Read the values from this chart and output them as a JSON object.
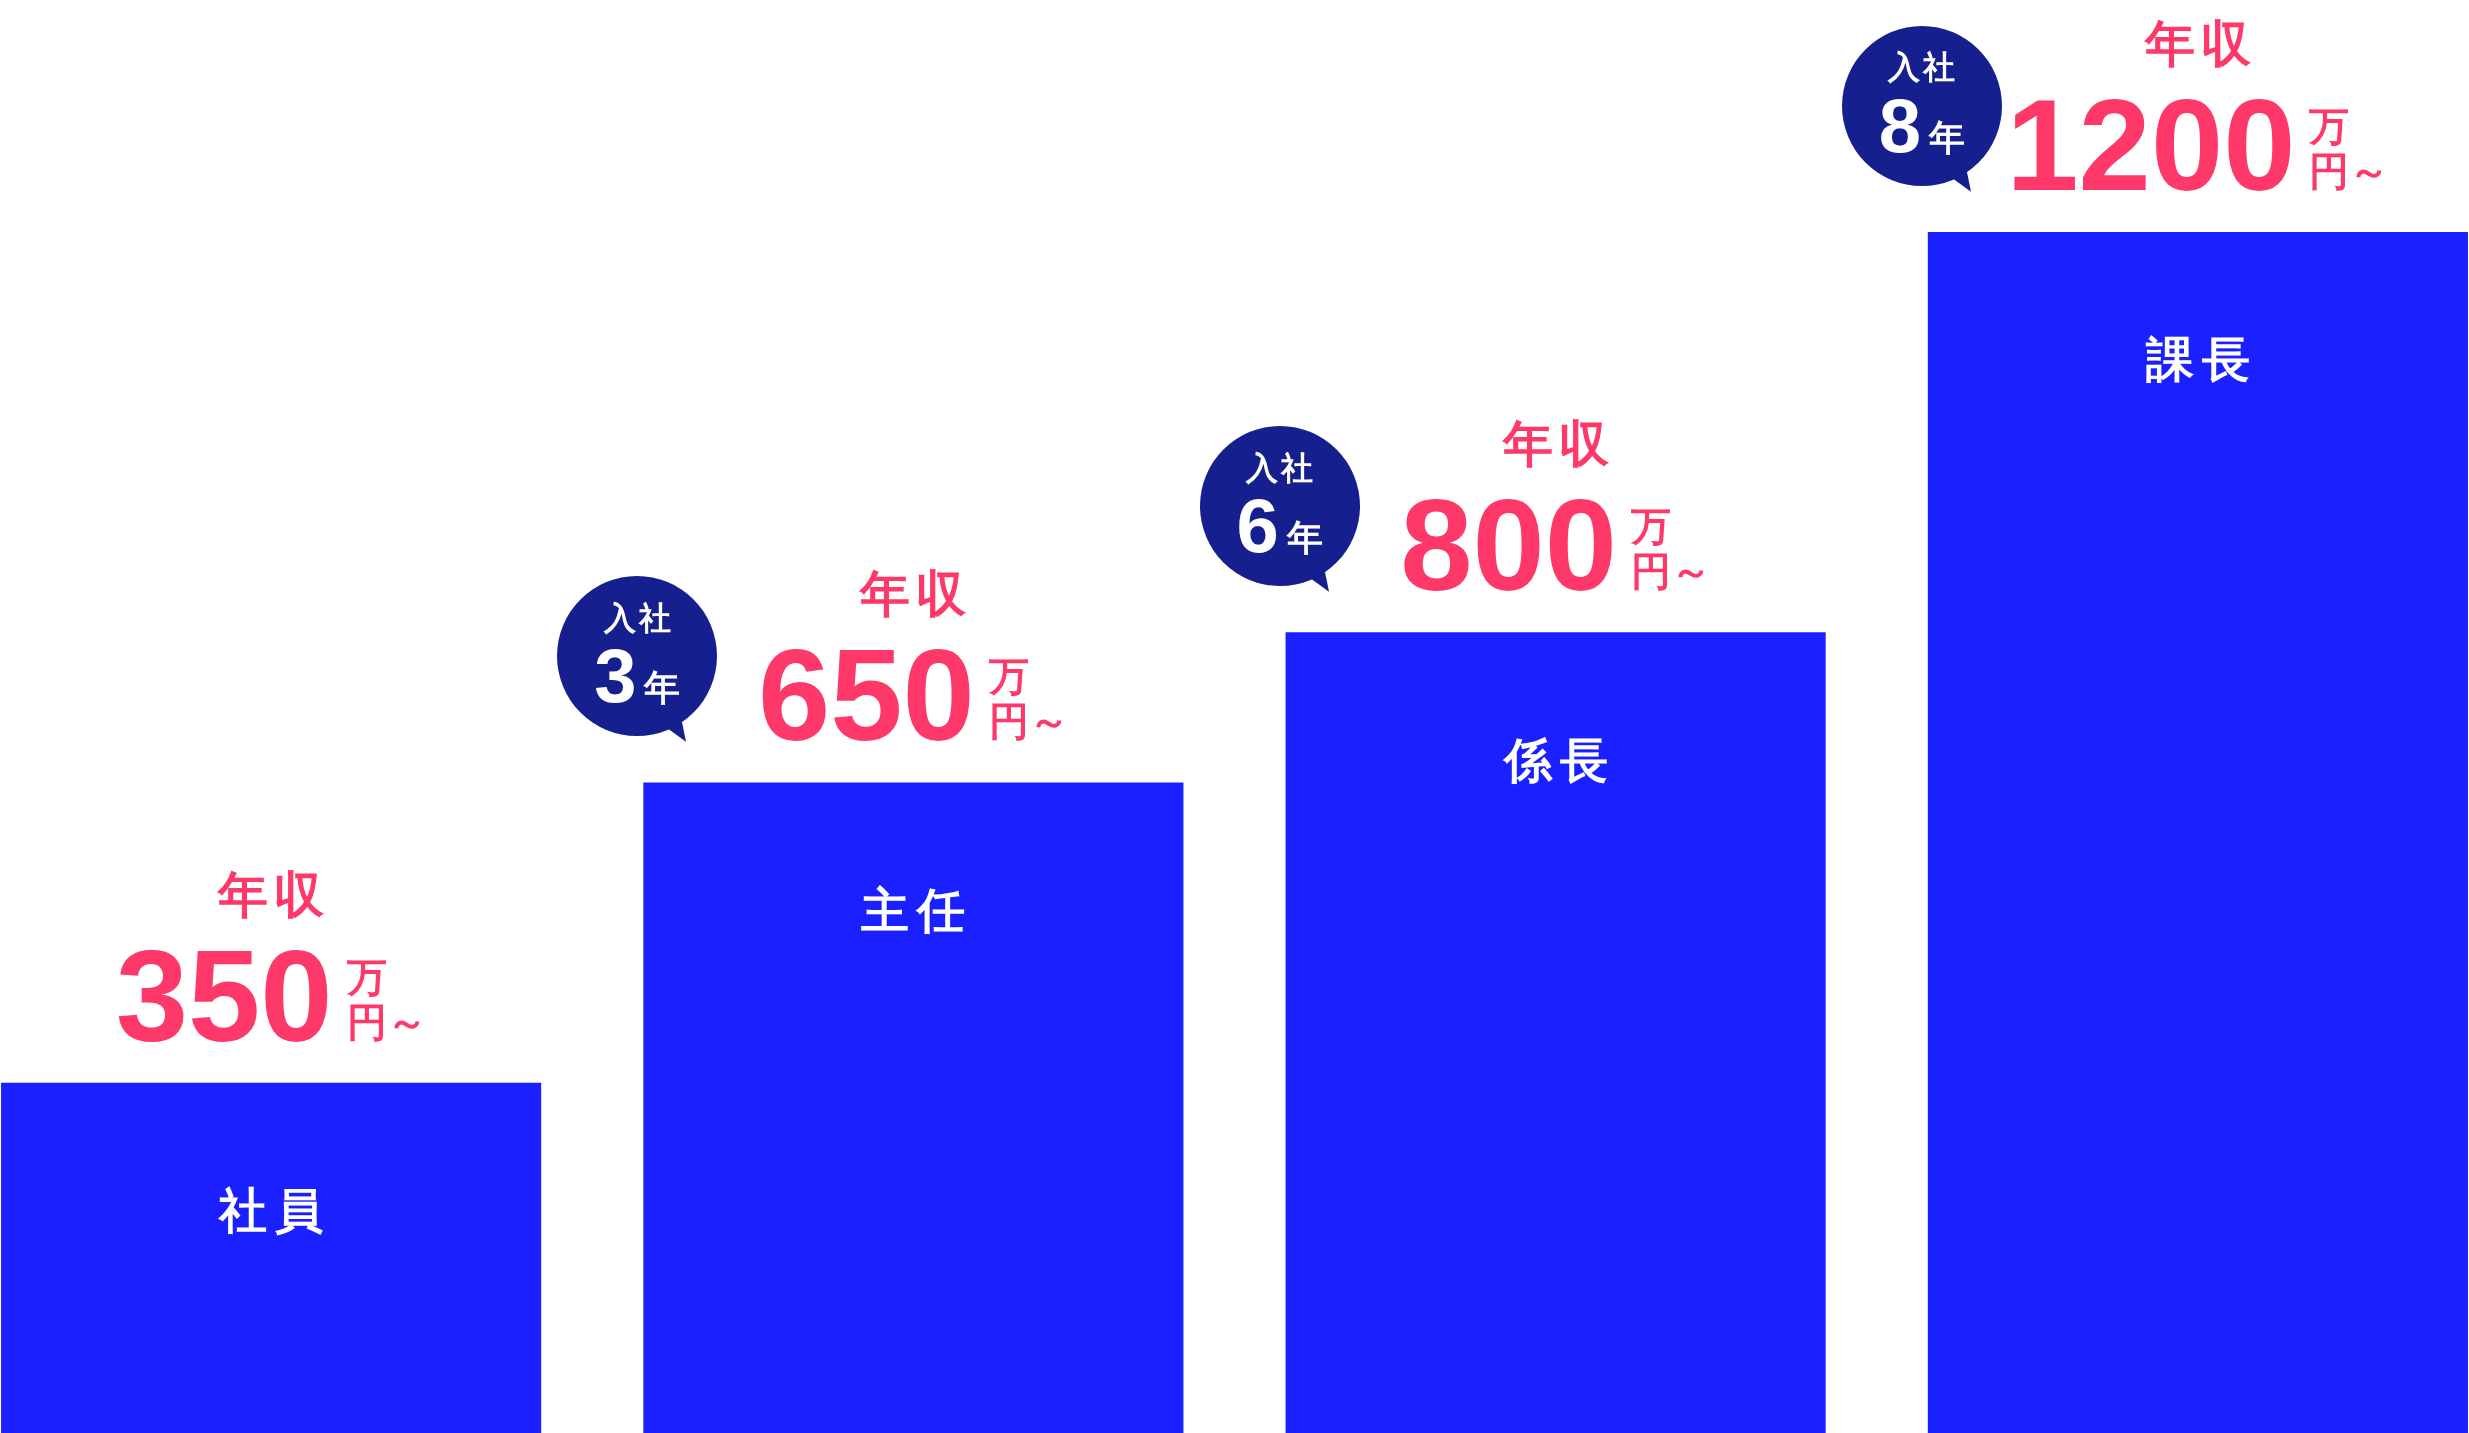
{
  "chart_data": {
    "type": "bar",
    "categories": [
      "社員",
      "主任",
      "係長",
      "課長"
    ],
    "values": [
      350,
      650,
      800,
      1200
    ],
    "color": "#1a20ff",
    "value_labels": [
      "年収350万円～",
      "年収650万円～",
      "年収800万円～",
      "年収1200万円～"
    ],
    "annotations": [
      "入社3年",
      "入社6年",
      "入社8年"
    ]
  }
}
